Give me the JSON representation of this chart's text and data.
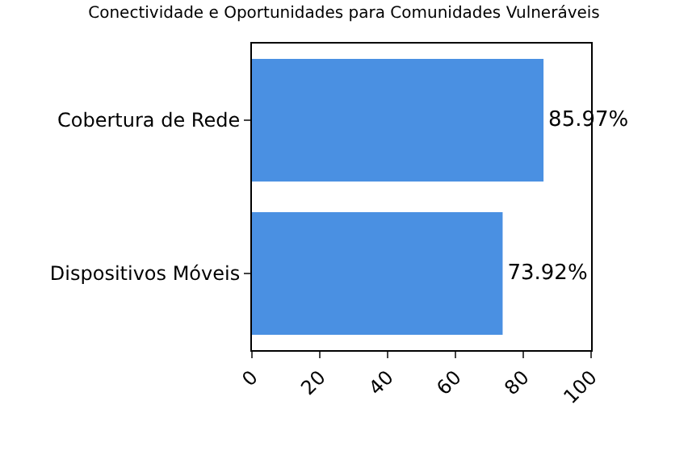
{
  "chart_data": {
    "type": "bar",
    "orientation": "horizontal",
    "title": "Conectividade e Oportunidades para Comunidades Vulneráveis",
    "categories": [
      "Cobertura de Rede",
      "Dispositivos Móveis"
    ],
    "values": [
      85.97,
      73.92
    ],
    "value_labels": [
      "85.97%",
      "73.92%"
    ],
    "color": "#4a90e2",
    "xlim": [
      0,
      100
    ],
    "xticks": [
      0,
      20,
      40,
      60,
      80,
      100
    ]
  }
}
